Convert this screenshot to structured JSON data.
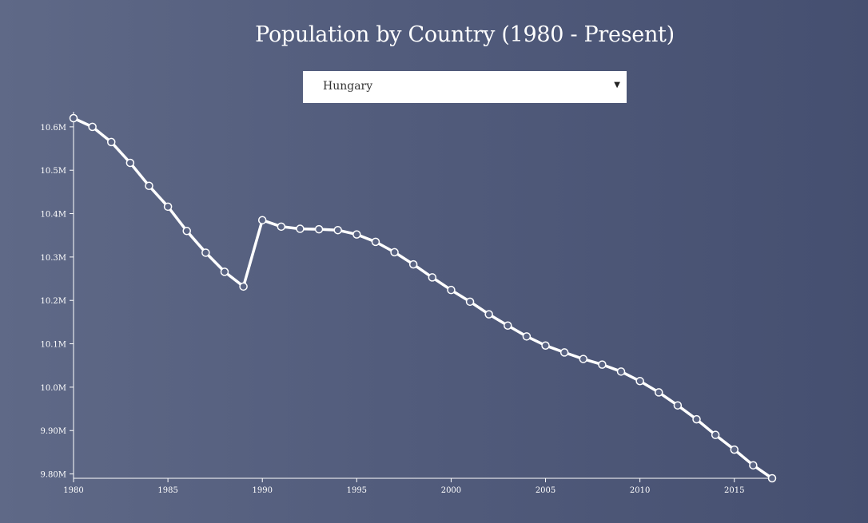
{
  "page": {
    "title": "Population by Country (1980 - Present)"
  },
  "selector": {
    "selected": "Hungary",
    "arrow_icon": "triangle-down-icon"
  },
  "colors": {
    "line": "#ffffff",
    "point_fill": "#5a6483",
    "axis": "#ffffff"
  },
  "chart_data": {
    "type": "line",
    "title": "Population by Country (1980 - Present)",
    "xlabel": "",
    "ylabel": "",
    "grid": false,
    "xlim": [
      1980,
      2017
    ],
    "ylim": [
      9.79,
      10.62
    ],
    "x_ticks": [
      1980,
      1985,
      1990,
      1995,
      2000,
      2005,
      2010,
      2015
    ],
    "y_ticks": [
      {
        "value": 9.8,
        "label": "9.80M"
      },
      {
        "value": 9.9,
        "label": "9.90M"
      },
      {
        "value": 10.0,
        "label": "10.0M"
      },
      {
        "value": 10.1,
        "label": "10.1M"
      },
      {
        "value": 10.2,
        "label": "10.2M"
      },
      {
        "value": 10.3,
        "label": "10.3M"
      },
      {
        "value": 10.4,
        "label": "10.4M"
      },
      {
        "value": 10.5,
        "label": "10.5M"
      },
      {
        "value": 10.6,
        "label": "10.6M"
      }
    ],
    "series": [
      {
        "x": [
          1980,
          1981,
          1982,
          1983,
          1984,
          1985,
          1986,
          1987,
          1988,
          1989,
          1990,
          1991,
          1992,
          1993,
          1994,
          1995,
          1996,
          1997,
          1998,
          1999,
          2000,
          2001,
          2002,
          2003,
          2004,
          2005,
          2006,
          2007,
          2008,
          2009,
          2010,
          2011,
          2012,
          2013,
          2014,
          2015,
          2016,
          2017
        ],
        "values": [
          10.62,
          10.6,
          10.565,
          10.517,
          10.464,
          10.416,
          10.36,
          10.31,
          10.266,
          10.232,
          10.385,
          10.37,
          10.365,
          10.364,
          10.362,
          10.352,
          10.335,
          10.311,
          10.283,
          10.253,
          10.224,
          10.197,
          10.168,
          10.142,
          10.117,
          10.096,
          10.08,
          10.065,
          10.052,
          10.036,
          10.014,
          9.988,
          9.958,
          9.926,
          9.89,
          9.856,
          9.82,
          9.79
        ]
      }
    ]
  }
}
